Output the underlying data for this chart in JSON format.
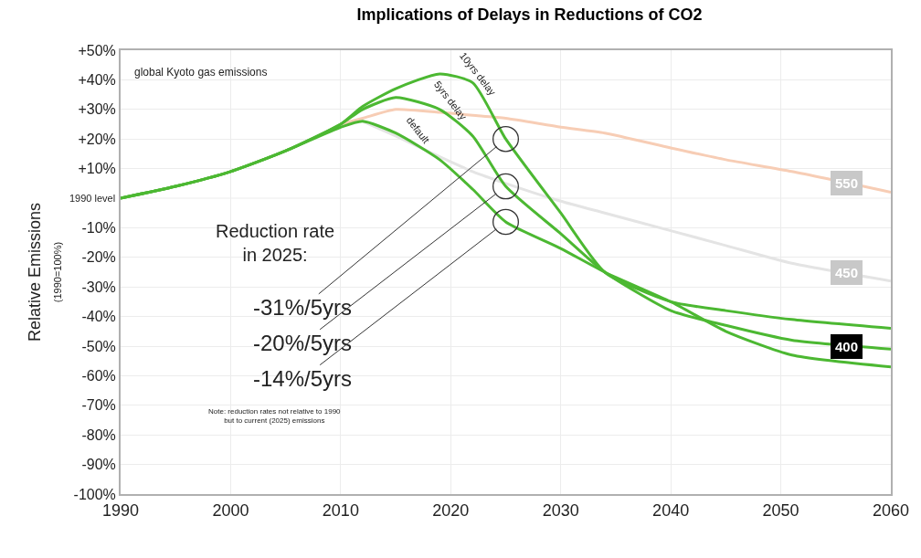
{
  "chart_data": {
    "type": "line",
    "title": "Implications of Delays in Reductions of CO2",
    "ylabel": "Relative Emissions\n(1990=100%)",
    "x": [
      1990,
      1995,
      2000,
      2005,
      2010,
      2012,
      2015,
      2019,
      2022,
      2025,
      2030,
      2034,
      2040,
      2045,
      2051,
      2060
    ],
    "series": [
      {
        "color": "#f7cdb5",
        "values": [
          null,
          null,
          null,
          null,
          25,
          27,
          30,
          29,
          28,
          27,
          24,
          22,
          17,
          13,
          9,
          2
        ]
      },
      {
        "color": "#e4e4e4",
        "values": [
          null,
          null,
          null,
          null,
          null,
          26,
          21,
          14,
          9,
          5,
          -1,
          -5,
          -11,
          -16,
          -22,
          -28
        ]
      },
      {
        "color": "#4cb832",
        "values": [
          0,
          4,
          9,
          16,
          24,
          26,
          22,
          13,
          3,
          -8,
          -17,
          -25,
          -35,
          -45,
          -53,
          -57
        ]
      },
      {
        "color": "#4cb832",
        "values": [
          0,
          4,
          9,
          16,
          25,
          30,
          34,
          30,
          21,
          4,
          -12,
          -25,
          -38,
          -43,
          -48,
          -51
        ]
      },
      {
        "color": "#4cb832",
        "values": [
          0,
          4,
          9,
          16,
          25,
          31,
          37,
          42,
          39,
          20,
          -5,
          -25,
          -35,
          -38,
          -41,
          -44
        ]
      }
    ],
    "xlim": [
      1990,
      2060
    ],
    "xticks": [
      1990,
      2000,
      2010,
      2020,
      2030,
      2040,
      2050,
      2060
    ],
    "ylim": [
      -100,
      50
    ],
    "yticks": [
      {
        "value": 50,
        "label": "+50%"
      },
      {
        "value": 40,
        "label": "+40%"
      },
      {
        "value": 30,
        "label": "+30%"
      },
      {
        "value": 20,
        "label": "+20%"
      },
      {
        "value": 10,
        "label": "+10%"
      },
      {
        "value": -10,
        "label": "-10%"
      },
      {
        "value": -20,
        "label": "-20%"
      },
      {
        "value": -30,
        "label": "-30%"
      },
      {
        "value": -40,
        "label": "-40%"
      },
      {
        "value": -50,
        "label": "-50%"
      },
      {
        "value": -60,
        "label": "-60%"
      },
      {
        "value": -70,
        "label": "-70%"
      },
      {
        "value": -80,
        "label": "-80%"
      },
      {
        "value": -90,
        "label": "-90%"
      },
      {
        "value": -100,
        "label": "-100%"
      }
    ],
    "ref_lines": [
      {
        "axis": "y",
        "value": 0,
        "label": "1990 level",
        "color": "#ececec"
      }
    ],
    "grid": true,
    "marker": "none",
    "line_style": "solid",
    "annotations": [
      "global Kyoto gas emissions",
      {
        "text": "10yrs delay",
        "x": 2022,
        "y": 39
      },
      {
        "text": "5yrs delay",
        "x": 2019.5,
        "y": 30
      },
      {
        "text": "default",
        "x": 2016.5,
        "y": 20
      },
      "Reduction rate\nin 2025:",
      {
        "text": "-31%/5yrs",
        "x": 2025,
        "y": 20
      },
      {
        "text": "-20%/5yrs",
        "x": 2025,
        "y": 4
      },
      {
        "text": "-14%/5yrs",
        "x": 2025,
        "y": -8
      },
      "Note: reduction rates not relative to 1990\nbut to current (2025) emissions",
      {
        "text": "550",
        "x": 2056,
        "y": 5
      },
      {
        "text": "450",
        "x": 2056,
        "y": -25
      },
      {
        "text": "400",
        "x": 2056,
        "y": -50
      }
    ]
  }
}
